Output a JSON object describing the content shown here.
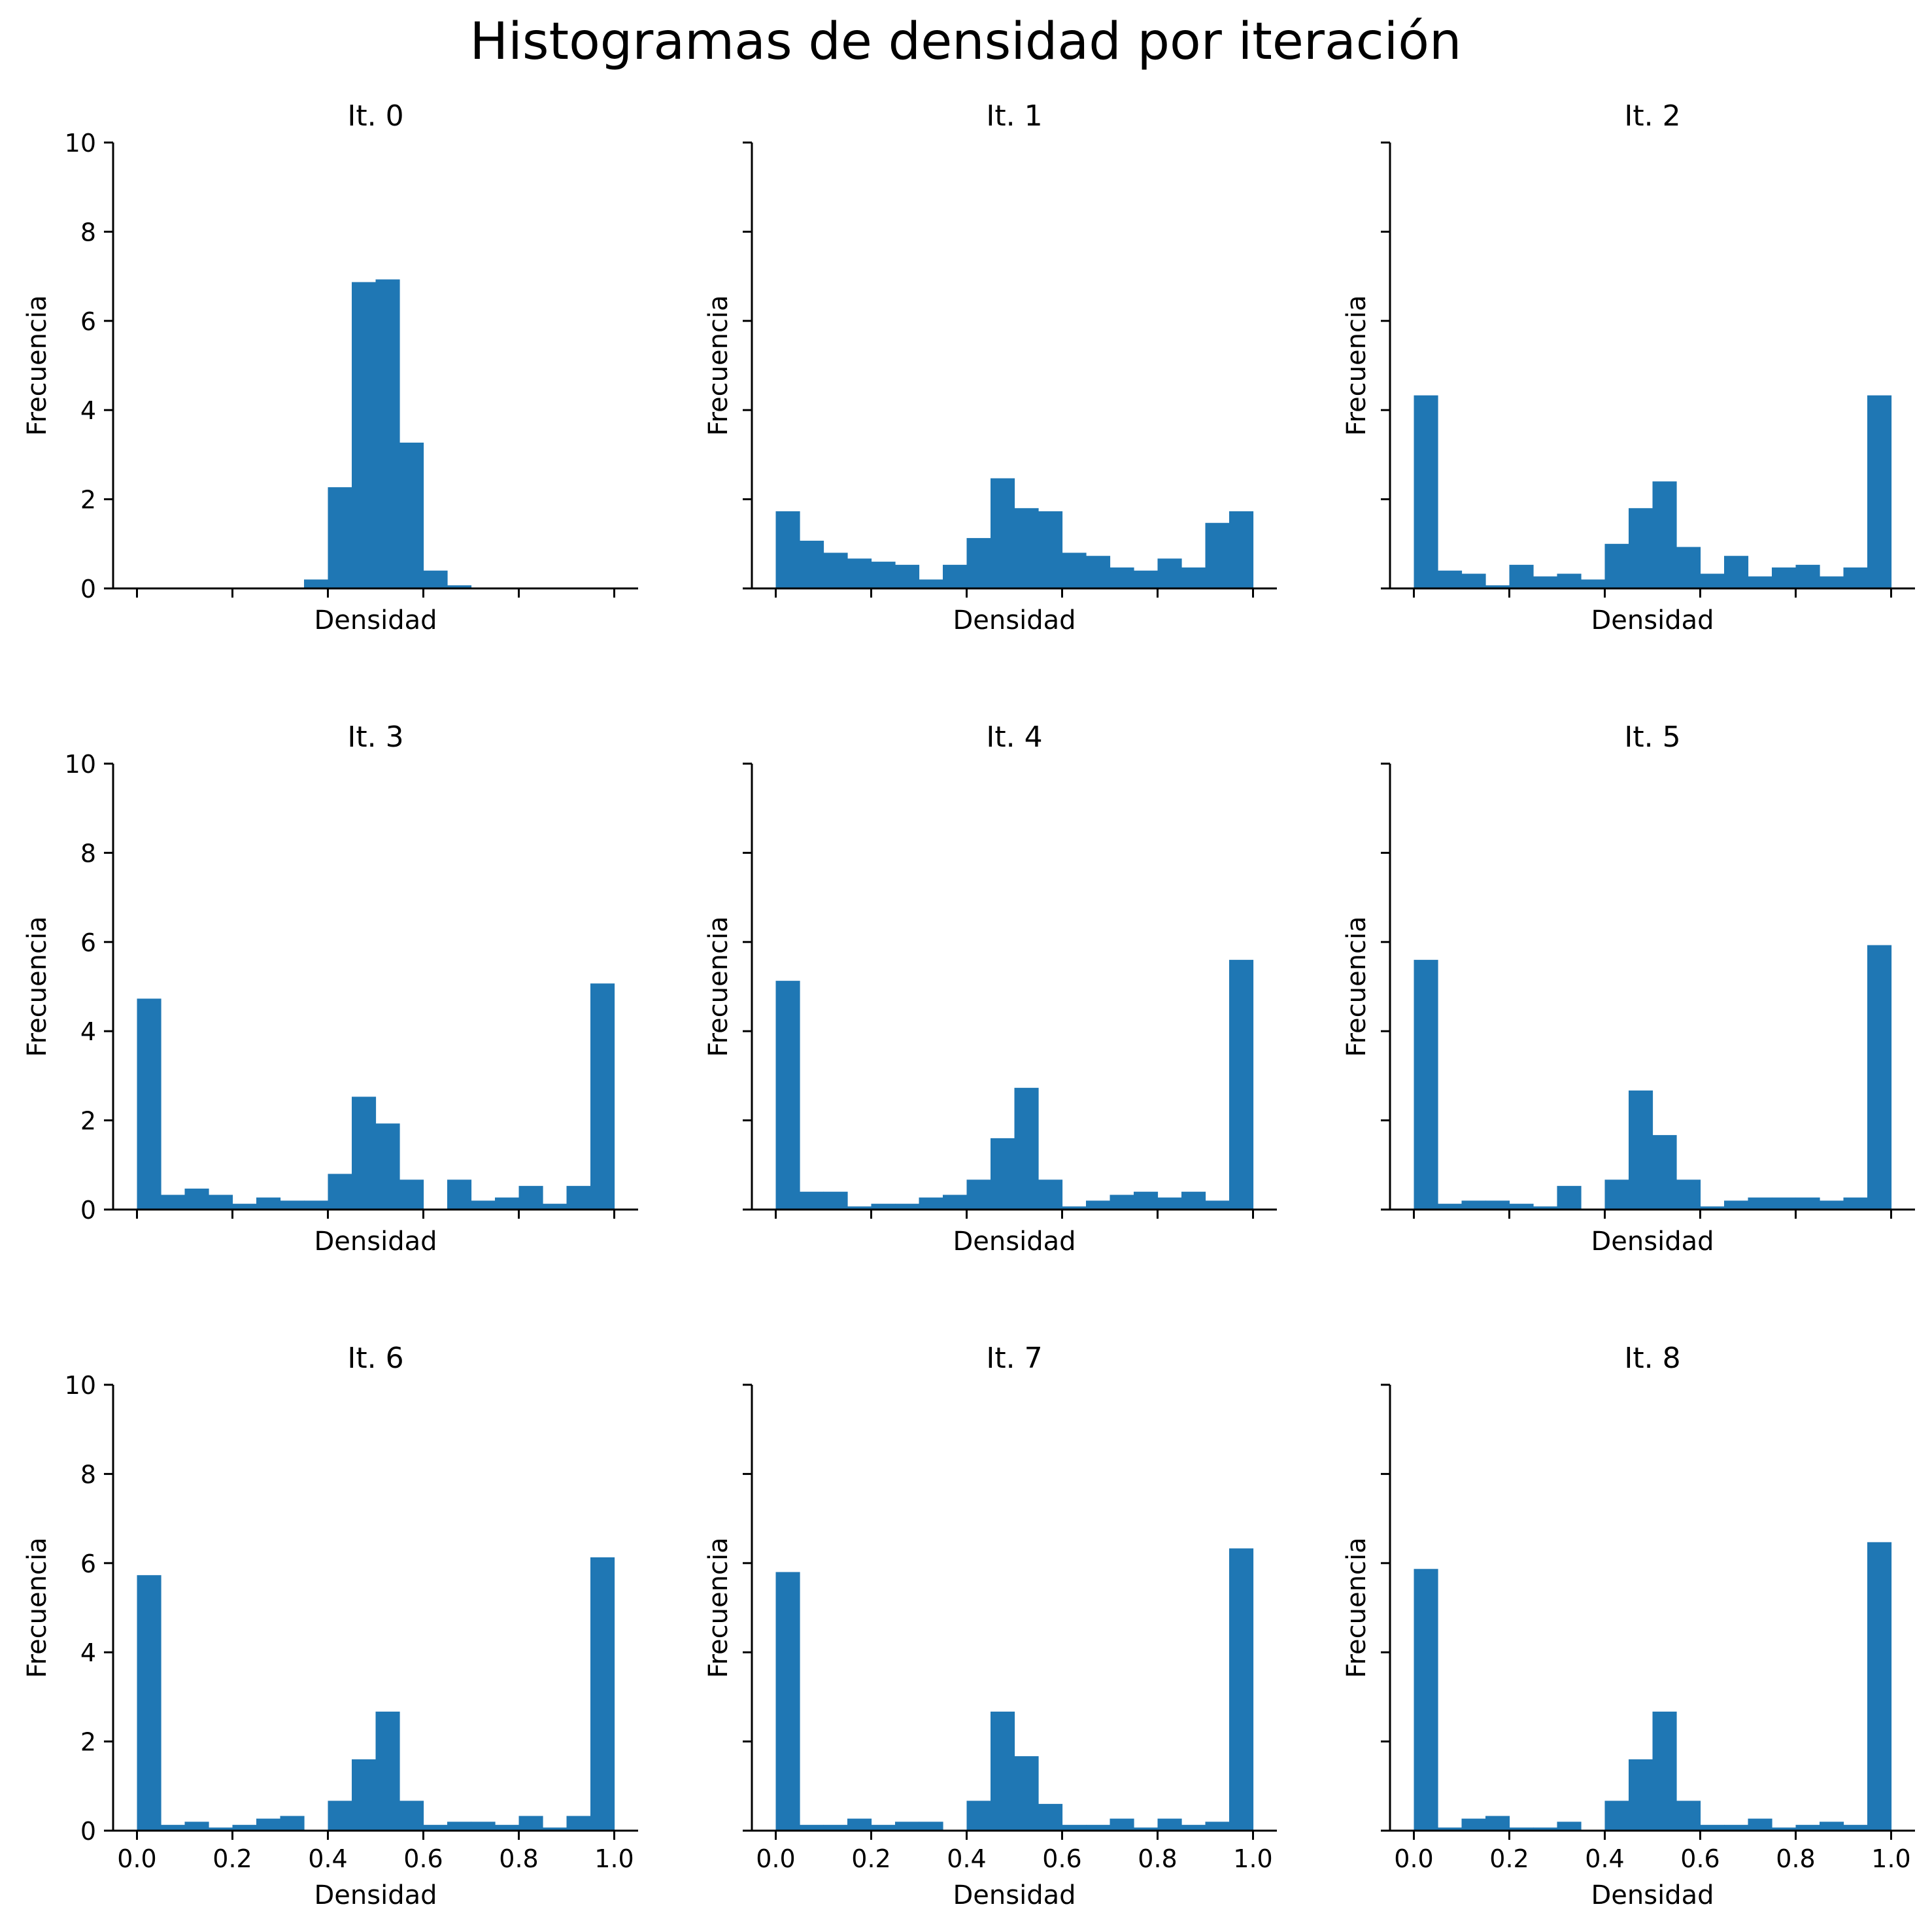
{
  "title": "Histogramas de densidad por iteración",
  "colors": {
    "bar": "#1f77b4",
    "axes": "#000000",
    "background": "#ffffff"
  },
  "chart_data": {
    "type": "bar",
    "layout": "3x3 grid of histograms, shared x and y axes",
    "bin_edges": [
      0.0,
      0.05,
      0.1,
      0.15,
      0.2,
      0.25,
      0.3,
      0.35,
      0.4,
      0.45,
      0.5,
      0.55,
      0.6,
      0.65,
      0.7,
      0.75,
      0.8,
      0.85,
      0.9,
      0.95,
      1.0
    ],
    "xlim": [
      -0.05,
      1.05
    ],
    "ylim": [
      0,
      10
    ],
    "xticks": [
      "0.0",
      "0.2",
      "0.4",
      "0.6",
      "0.8",
      "1.0"
    ],
    "yticks": [
      "0",
      "2",
      "4",
      "6",
      "8",
      "10"
    ],
    "xlabel": "Densidad",
    "ylabel": "Frecuencia",
    "panels": [
      {
        "title": "It. 0",
        "values": [
          0,
          0,
          0,
          0,
          0,
          0,
          0,
          0.2,
          2.27,
          6.87,
          6.93,
          3.27,
          0.4,
          0.07,
          0,
          0,
          0,
          0,
          0,
          0
        ]
      },
      {
        "title": "It. 1",
        "values": [
          1.73,
          1.07,
          0.8,
          0.67,
          0.6,
          0.53,
          0.2,
          0.53,
          1.13,
          2.47,
          1.8,
          1.73,
          0.8,
          0.73,
          0.47,
          0.4,
          0.67,
          0.47,
          1.47,
          1.73
        ]
      },
      {
        "title": "It. 2",
        "values": [
          4.33,
          0.4,
          0.33,
          0.07,
          0.53,
          0.27,
          0.33,
          0.2,
          1.0,
          1.8,
          2.4,
          0.93,
          0.33,
          0.73,
          0.27,
          0.47,
          0.53,
          0.27,
          0.47,
          4.33
        ]
      },
      {
        "title": "It. 3",
        "values": [
          4.73,
          0.33,
          0.47,
          0.33,
          0.13,
          0.27,
          0.2,
          0.2,
          0.8,
          2.53,
          1.93,
          0.67,
          0,
          0.67,
          0.2,
          0.27,
          0.53,
          0.13,
          0.53,
          5.07
        ]
      },
      {
        "title": "It. 4",
        "values": [
          5.13,
          0.4,
          0.4,
          0.07,
          0.13,
          0.13,
          0.27,
          0.33,
          0.67,
          1.6,
          2.73,
          0.67,
          0.07,
          0.2,
          0.33,
          0.4,
          0.27,
          0.4,
          0.2,
          5.6
        ]
      },
      {
        "title": "It. 5",
        "values": [
          5.6,
          0.13,
          0.2,
          0.2,
          0.13,
          0.07,
          0.53,
          0,
          0.67,
          2.67,
          1.67,
          0.67,
          0.07,
          0.2,
          0.27,
          0.27,
          0.27,
          0.2,
          0.27,
          5.93
        ]
      },
      {
        "title": "It. 6",
        "values": [
          5.73,
          0.13,
          0.2,
          0.07,
          0.13,
          0.27,
          0.33,
          0,
          0.67,
          1.6,
          2.67,
          0.67,
          0.13,
          0.2,
          0.2,
          0.13,
          0.33,
          0.07,
          0.33,
          6.13
        ]
      },
      {
        "title": "It. 7",
        "values": [
          5.8,
          0.13,
          0.13,
          0.27,
          0.13,
          0.2,
          0.2,
          0,
          0.67,
          2.67,
          1.67,
          0.6,
          0.13,
          0.13,
          0.27,
          0.07,
          0.27,
          0.13,
          0.2,
          6.33
        ]
      },
      {
        "title": "It. 8",
        "values": [
          5.87,
          0.07,
          0.27,
          0.33,
          0.07,
          0.07,
          0.2,
          0,
          0.67,
          1.6,
          2.67,
          0.67,
          0.13,
          0.13,
          0.27,
          0.07,
          0.13,
          0.2,
          0.13,
          6.47
        ]
      }
    ]
  }
}
